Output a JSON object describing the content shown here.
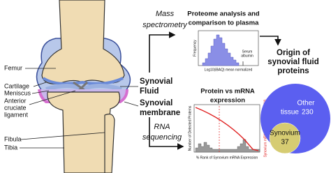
{
  "knee_labels": [
    "Femur",
    "Cartilage",
    "Meniscus",
    "Anterior",
    "cruciate",
    "ligament",
    "Fibula",
    "Tibia"
  ],
  "synovial_fluid": [
    "Synovial",
    "Fluid"
  ],
  "synovial_membrane": [
    "Synovial",
    "membrane"
  ],
  "mass_spec": [
    "Mass",
    "spectrometry"
  ],
  "rna_seq": [
    "RNA",
    "sequencing"
  ],
  "proteome": {
    "title": [
      "Proteome analysis and",
      "comparison to plasma"
    ],
    "y_label": "Frequency",
    "x_label": "Log10(iBAQ) mean normalized",
    "annotation": [
      "Serum",
      "albumin"
    ]
  },
  "mrna": {
    "title": [
      "Protein vs mRNA",
      "expression"
    ],
    "y_label": "Number of Detected Proteins",
    "y2_label": "Synovium mRNA Expression (RPKM)",
    "x_label": "% Rank of Synovium mRNA Expression"
  },
  "origin": {
    "title": [
      "Origin of",
      "synovial fluid",
      "proteins"
    ]
  },
  "venn": {
    "other": {
      "label": "Other",
      "label2": "tissue",
      "count": 230
    },
    "synovium": {
      "label": "Synovium",
      "count": 37
    }
  }
}
